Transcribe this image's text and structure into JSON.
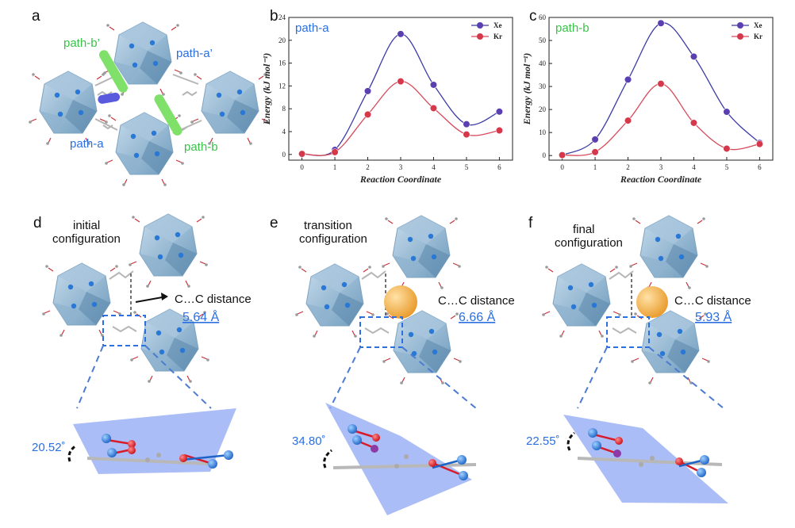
{
  "panels": {
    "a": "a",
    "b": "b",
    "c": "c",
    "d": "d",
    "e": "e",
    "f": "f"
  },
  "panel_a": {
    "path_a": "path-a",
    "path_a_prime": "path-a’",
    "path_b": "path-b",
    "path_b_prime": "path-b’"
  },
  "panel_d": {
    "line1": "initial",
    "line2": "configuration",
    "distance_label": "C…C distance",
    "distance_value": "5.64 Å",
    "angle": "20.52˚"
  },
  "panel_e": {
    "line1": "transition",
    "line2": "configuration",
    "distance_label": "C…C distance",
    "distance_value": "6.66 Å",
    "angle": "34.80˚"
  },
  "panel_f": {
    "line1": "final",
    "line2": "configuration",
    "distance_label": "C…C distance",
    "distance_value": "5.93 Å",
    "angle": "22.55˚"
  },
  "colors": {
    "xe": "#5a3fb0",
    "kr": "#d6384b",
    "xe_line": "#3b3ba8",
    "kr_line": "#d64a5a",
    "blue_text": "#2b6fe0",
    "green_text": "#3bc14a"
  },
  "chart_data": [
    {
      "type": "line",
      "title": "path-a",
      "xlabel": "Reaction Coordinate",
      "ylabel": "Energy (kJ mol⁻¹)",
      "x": [
        0,
        1,
        2,
        3,
        4,
        5,
        6
      ],
      "xticks": [
        "0",
        "1",
        "2",
        "3",
        "4",
        "5",
        "6"
      ],
      "ylim": [
        -1,
        24
      ],
      "yticks": [
        0,
        4,
        8,
        12,
        16,
        20,
        24
      ],
      "legend": "top-right",
      "series": [
        {
          "name": "Xe",
          "values": [
            0.1,
            0.8,
            11.1,
            21.1,
            12.2,
            5.3,
            7.5
          ]
        },
        {
          "name": "Kr",
          "values": [
            0.1,
            0.4,
            7.0,
            12.8,
            8.1,
            3.5,
            4.2
          ]
        }
      ]
    },
    {
      "type": "line",
      "title": "path-b",
      "xlabel": "Reaction Coordinate",
      "ylabel": "Energy (kJ mol⁻¹)",
      "x": [
        0,
        1,
        2,
        3,
        4,
        5,
        6
      ],
      "xticks": [
        "0",
        "1",
        "2",
        "3",
        "4",
        "5",
        "6"
      ],
      "ylim": [
        -2,
        60
      ],
      "yticks": [
        0,
        10,
        20,
        30,
        40,
        50,
        60
      ],
      "legend": "top-right",
      "series": [
        {
          "name": "Xe",
          "values": [
            0.2,
            7.0,
            33.0,
            57.5,
            43.0,
            19.0,
            5.5
          ]
        },
        {
          "name": "Kr",
          "values": [
            0.2,
            1.5,
            15.2,
            31.2,
            14.2,
            3.0,
            5.0
          ]
        }
      ]
    }
  ]
}
